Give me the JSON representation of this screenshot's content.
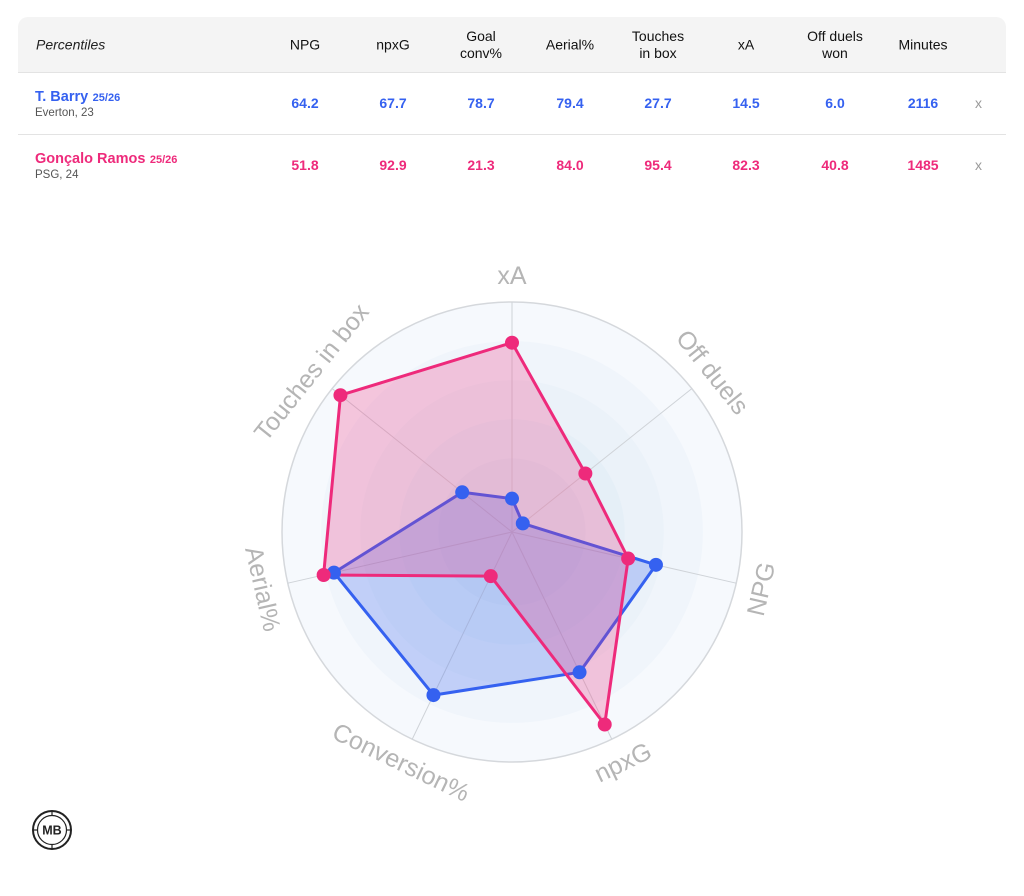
{
  "table": {
    "header_label": "Percentiles",
    "columns": [
      "NPG",
      "npxG",
      "Goal\nconv%",
      "Aerial%",
      "Touches\nin box",
      "xA",
      "Off duels\nwon",
      "Minutes"
    ],
    "players": [
      {
        "name": "T. Barry",
        "season": "25/26",
        "meta": "Everton, 23",
        "values": [
          "64.2",
          "67.7",
          "78.7",
          "79.4",
          "27.7",
          "14.5",
          "6.0",
          "2116"
        ],
        "remove": "x",
        "color": "#3561f0"
      },
      {
        "name": "Gonçalo Ramos",
        "season": "25/26",
        "meta": "PSG, 24",
        "values": [
          "51.8",
          "92.9",
          "21.3",
          "84.0",
          "95.4",
          "82.3",
          "40.8",
          "1485"
        ],
        "remove": "x",
        "color": "#ee2a7b"
      }
    ]
  },
  "chart_data": {
    "type": "radar",
    "axes": [
      "xA",
      "Off duels",
      "NPG",
      "npxG",
      "Conversion%",
      "Aerial%",
      "Touches in box"
    ],
    "range": [
      0,
      100
    ],
    "series": [
      {
        "name": "T. Barry",
        "color": "#3561f0",
        "values": [
          14.5,
          6.0,
          64.2,
          67.7,
          78.7,
          79.4,
          27.7
        ]
      },
      {
        "name": "Gonçalo Ramos",
        "color": "#ee2a7b",
        "values": [
          82.3,
          40.8,
          51.8,
          92.9,
          21.3,
          84.0,
          95.4
        ]
      }
    ]
  },
  "logo": {
    "text": "MB"
  }
}
